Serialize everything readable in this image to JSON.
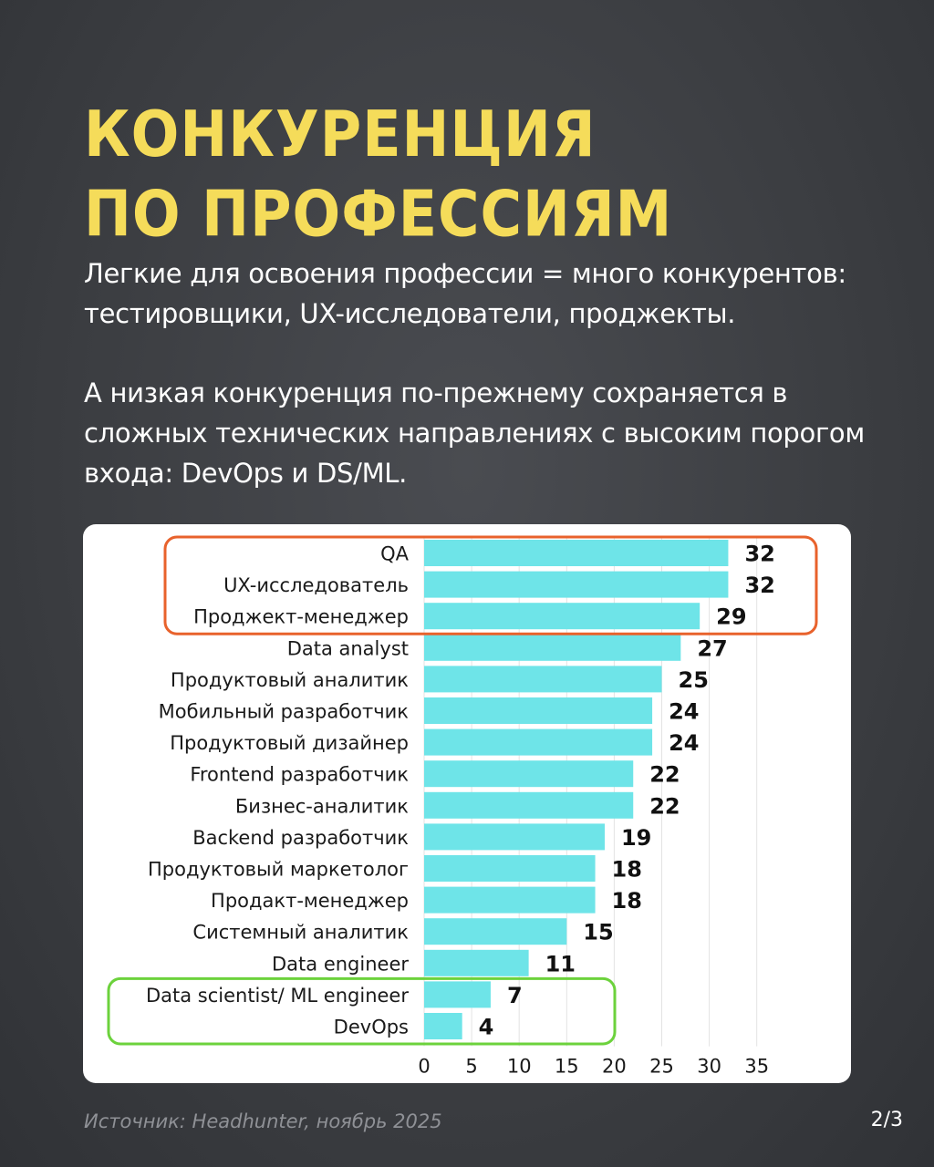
{
  "header": {
    "title_line1": "Конкуренция",
    "title_line2": "по профессиям"
  },
  "text": {
    "para1": "Легкие для освоения профессии = много конкурентов: тестировщики, UX-исследователи, проджекты.",
    "para2": "А низкая конкуренция по-прежнему сохраняется в сложных технических направлениях с высоким порогом входа: DevOps и DS/ML."
  },
  "footer": {
    "source": "Источник: Headhunter, ноябрь 2025",
    "page": "2/3"
  },
  "colors": {
    "title": "#f5dc5a",
    "bar": "#6ee4e8",
    "highlight_high": "#e8622c",
    "highlight_low": "#6cd23c"
  },
  "chart_data": {
    "type": "bar",
    "orientation": "horizontal",
    "categories": [
      "QA",
      "UX-исследователь",
      "Проджект-менеджер",
      "Data analyst",
      "Продуктовый аналитик",
      "Мобильный разработчик",
      "Продуктовый дизайнер",
      "Frontend разработчик",
      "Бизнес-аналитик",
      "Backend разработчик",
      "Продуктовый маркетолог",
      "Продакт-менеджер",
      "Системный аналитик",
      "Data engineer",
      "Data scientist/ ML engineer",
      "DevOps"
    ],
    "values": [
      32,
      32,
      29,
      27,
      25,
      24,
      24,
      22,
      22,
      19,
      18,
      18,
      15,
      11,
      7,
      4
    ],
    "xlim": [
      0,
      35
    ],
    "xticks": [
      0,
      5,
      10,
      15,
      20,
      25,
      30,
      35
    ],
    "grid": true,
    "highlight_groups": [
      {
        "color": "#e8622c",
        "categories": [
          "QA",
          "UX-исследователь",
          "Проджект-менеджер"
        ]
      },
      {
        "color": "#6cd23c",
        "categories": [
          "Data scientist/ ML engineer",
          "DevOps"
        ]
      }
    ]
  }
}
